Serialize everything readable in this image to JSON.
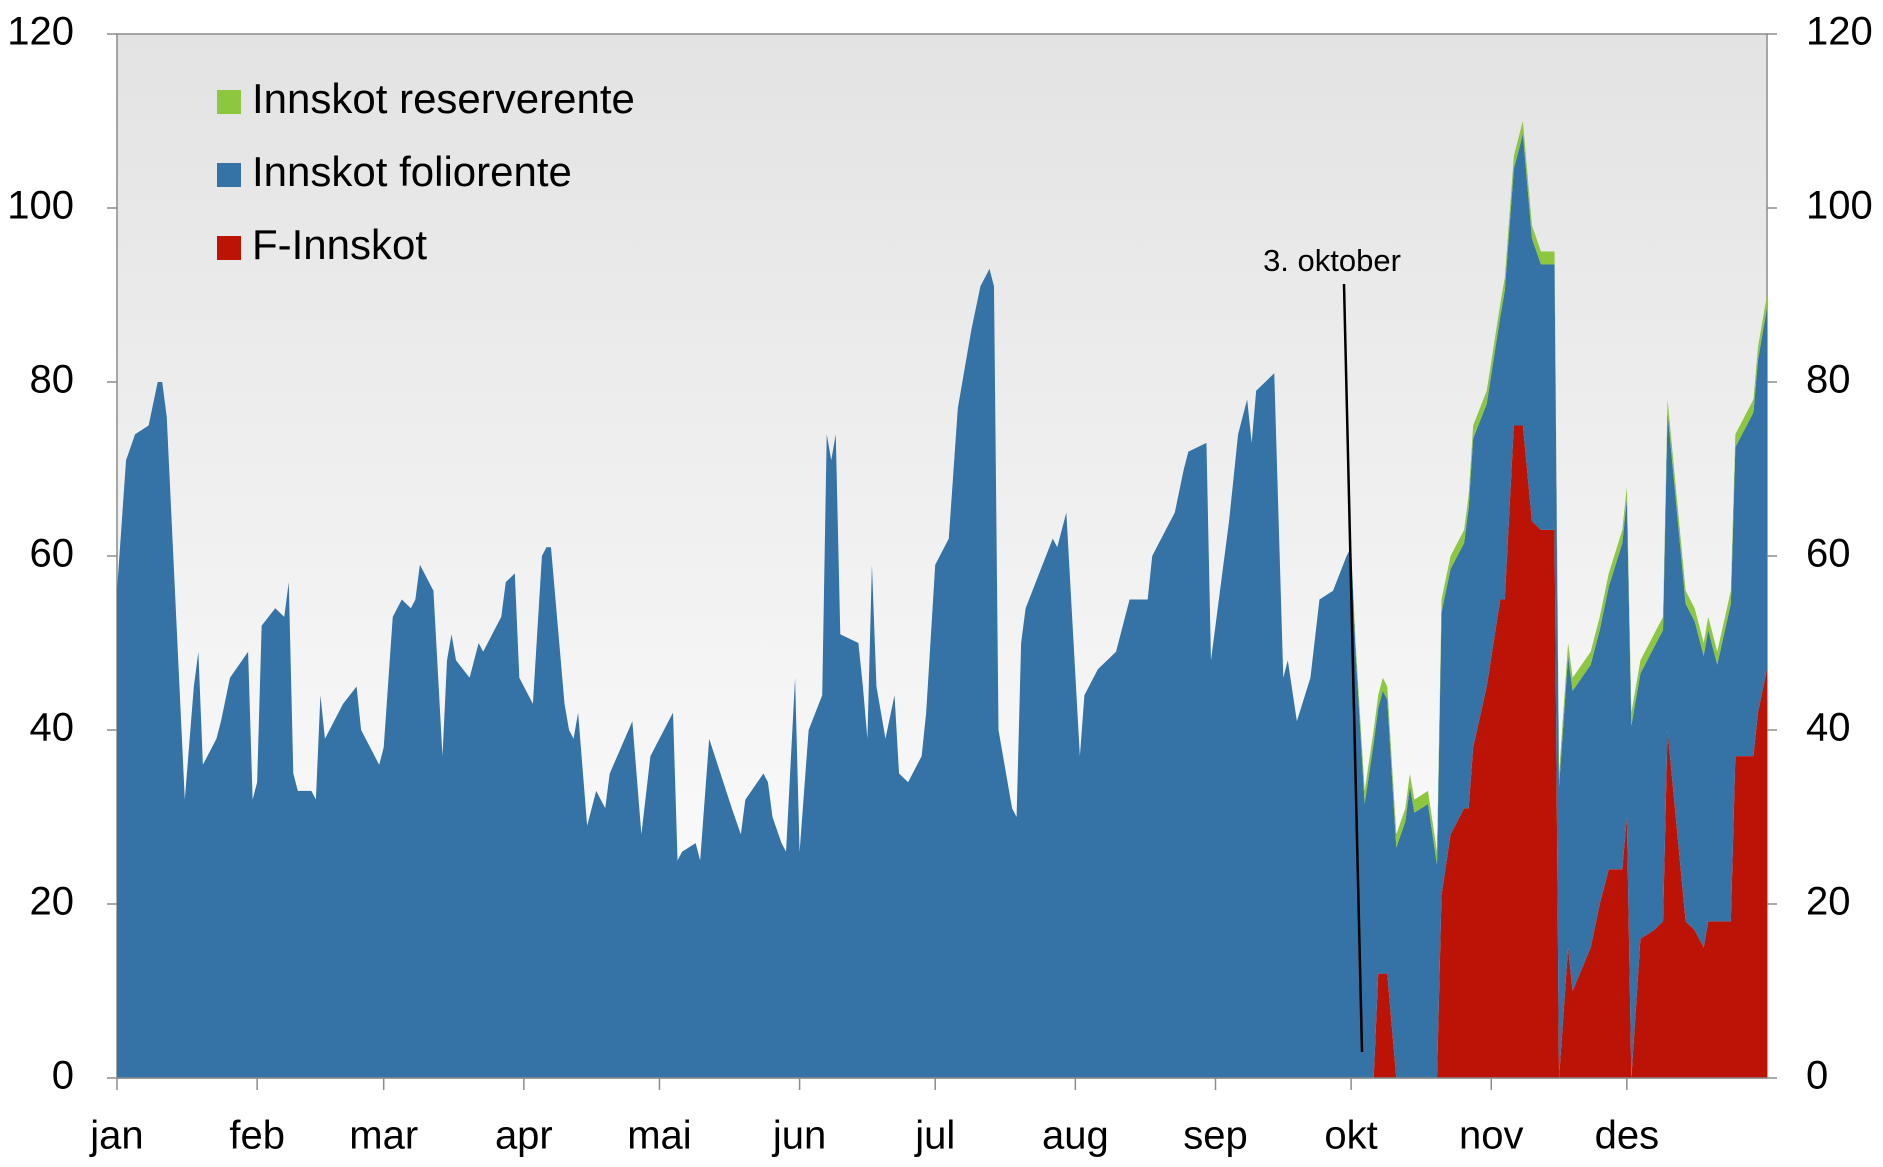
{
  "chart_data": {
    "type": "stacked_area",
    "x": [
      0,
      2,
      4,
      7,
      9,
      10,
      11,
      15,
      17,
      18,
      19,
      22,
      23,
      25,
      29,
      30,
      31,
      32,
      35,
      37,
      38,
      39,
      40,
      43,
      44,
      45,
      46,
      50,
      53,
      54,
      57,
      58,
      59,
      61,
      63,
      65,
      66,
      67,
      68,
      70,
      72,
      73,
      74,
      75,
      78,
      80,
      81,
      83,
      85,
      86,
      88,
      89,
      92,
      94,
      95,
      96,
      99,
      100,
      101,
      102,
      104,
      106,
      108,
      109,
      114,
      116,
      118,
      122,
      123,
      124,
      125,
      128,
      129,
      131,
      136,
      138,
      139,
      143,
      144,
      145,
      147,
      148,
      150,
      151,
      153,
      156,
      157,
      158,
      159,
      160,
      164,
      165,
      166,
      167,
      168,
      170,
      172,
      173,
      175,
      178,
      179,
      181,
      184,
      186,
      187,
      189,
      191,
      193,
      194,
      195,
      198,
      199,
      200,
      201,
      204,
      207,
      208,
      210,
      213,
      214,
      216,
      217,
      221,
      224,
      228,
      229,
      230,
      234,
      236,
      237,
      241,
      242,
      244,
      246,
      248,
      250,
      251,
      252,
      256,
      258,
      259,
      261,
      264,
      266,
      269,
      272,
      273,
      274,
      276,
      278,
      279,
      280,
      281,
      283,
      285,
      286,
      287,
      290,
      292,
      293,
      295,
      298,
      299,
      300,
      303,
      306,
      307,
      309,
      311,
      313,
      315,
      318,
      319,
      321,
      322,
      326,
      328,
      330,
      333,
      334,
      335,
      337,
      340,
      342,
      343,
      347,
      349,
      351,
      352,
      354,
      357,
      358,
      362,
      363,
      365
    ],
    "series": [
      {
        "name": "Innskot reserverente",
        "color": "#8dc63f",
        "values": [
          0,
          0,
          0,
          0,
          0,
          0,
          0,
          0,
          0,
          0,
          0,
          0,
          0,
          0,
          0,
          0,
          0,
          0,
          0,
          0,
          0,
          0,
          0,
          0,
          0,
          0,
          0,
          0,
          0,
          0,
          0,
          0,
          0,
          0,
          0,
          0,
          0,
          0,
          0,
          0,
          0,
          0,
          0,
          0,
          0,
          0,
          0,
          0,
          0,
          0,
          0,
          0,
          0,
          0,
          0,
          0,
          0,
          0,
          0,
          0,
          0,
          0,
          0,
          0,
          0,
          0,
          0,
          0,
          0,
          0,
          0,
          0,
          0,
          0,
          0,
          0,
          0,
          0,
          0,
          0,
          0,
          0,
          0,
          0,
          0,
          0,
          0,
          0,
          0,
          0,
          0,
          0,
          0,
          0,
          0,
          0,
          0,
          0,
          0,
          0,
          0,
          0,
          0,
          0,
          0,
          0,
          0,
          0,
          0,
          0,
          0,
          0,
          0,
          0,
          0,
          0,
          0,
          0,
          0,
          0,
          0,
          0,
          0,
          0,
          0,
          0,
          0,
          0,
          0,
          0,
          0,
          0,
          0,
          0,
          0,
          0,
          0,
          0,
          0,
          0,
          0,
          0,
          0,
          0,
          0,
          0,
          0,
          1,
          1.5,
          1.5,
          1.5,
          1.5,
          1.5,
          1.5,
          1.5,
          1.5,
          1.5,
          1.5,
          1.5,
          1.5,
          1.5,
          1.5,
          1.5,
          1.5,
          1.5,
          1.5,
          1.5,
          1.5,
          1.5,
          1.5,
          1.5,
          1.5,
          1.5,
          1.5,
          1.5,
          1.5,
          1.5,
          1.5,
          1.5,
          1.5,
          1.5,
          1.5,
          1.5,
          1.5,
          1.5,
          1.5,
          1.5,
          1.5,
          1.5,
          1.5,
          1.5,
          1.5,
          1.5,
          1.5,
          1.5
        ]
      },
      {
        "name": "Innskot foliorente",
        "color": "#3572a6",
        "values": [
          56,
          71,
          74,
          75,
          80,
          80,
          76,
          32,
          45,
          49,
          36,
          39,
          41,
          46,
          49,
          32,
          34,
          52,
          54,
          53,
          57,
          35,
          33,
          33,
          32,
          44,
          39,
          43,
          45,
          40,
          37,
          36,
          38,
          53,
          55,
          54,
          55,
          59,
          58,
          56,
          37,
          48,
          51,
          48,
          46,
          50,
          49,
          51,
          53,
          57,
          58,
          46,
          43,
          60,
          61,
          61,
          43,
          40,
          39,
          42,
          29,
          33,
          31,
          35,
          41,
          28,
          37,
          41,
          42,
          25,
          26,
          27,
          25,
          39,
          31,
          28,
          32,
          35,
          34,
          30,
          27,
          26,
          46,
          26,
          40,
          44,
          74,
          71,
          74,
          51,
          50,
          45,
          39,
          59,
          45,
          39,
          44,
          35,
          34,
          37,
          42,
          59,
          62,
          77,
          80,
          86,
          91,
          93,
          91,
          40,
          31,
          30,
          50,
          54,
          58,
          62,
          61,
          65,
          37,
          44,
          46,
          47,
          49,
          55,
          55,
          60,
          61,
          65,
          70,
          72,
          73,
          48,
          56,
          64,
          74,
          78,
          73,
          79,
          81,
          46,
          48,
          41,
          46,
          55,
          56,
          60,
          61,
          49,
          31.5,
          38.5,
          30.5,
          32.5,
          31.5,
          26.5,
          29.5,
          33.5,
          30.5,
          31.5,
          24.5,
          32.5,
          30.5,
          30.5,
          34.5,
          35.5,
          32.5,
          32.5,
          35.5,
          29.5,
          33.5,
          32.5,
          30.5,
          30.5,
          33.5,
          33.5,
          34.5,
          32.5,
          31.5,
          32.5,
          37.5,
          36.5,
          40.5,
          30.5,
          32.5,
          33.5,
          36.5,
          36.5,
          35.5,
          33.5,
          33.5,
          29.5,
          36.5,
          35.5,
          39.5,
          40.5,
          41.5
        ]
      },
      {
        "name": "F-Innskot",
        "color": "#bb1406",
        "values": [
          0,
          0,
          0,
          0,
          0,
          0,
          0,
          0,
          0,
          0,
          0,
          0,
          0,
          0,
          0,
          0,
          0,
          0,
          0,
          0,
          0,
          0,
          0,
          0,
          0,
          0,
          0,
          0,
          0,
          0,
          0,
          0,
          0,
          0,
          0,
          0,
          0,
          0,
          0,
          0,
          0,
          0,
          0,
          0,
          0,
          0,
          0,
          0,
          0,
          0,
          0,
          0,
          0,
          0,
          0,
          0,
          0,
          0,
          0,
          0,
          0,
          0,
          0,
          0,
          0,
          0,
          0,
          0,
          0,
          0,
          0,
          0,
          0,
          0,
          0,
          0,
          0,
          0,
          0,
          0,
          0,
          0,
          0,
          0,
          0,
          0,
          0,
          0,
          0,
          0,
          0,
          0,
          0,
          0,
          0,
          0,
          0,
          0,
          0,
          0,
          0,
          0,
          0,
          0,
          0,
          0,
          0,
          0,
          0,
          0,
          0,
          0,
          0,
          0,
          0,
          0,
          0,
          0,
          0,
          0,
          0,
          0,
          0,
          0,
          0,
          0,
          0,
          0,
          0,
          0,
          0,
          0,
          0,
          0,
          0,
          0,
          0,
          0,
          0,
          0,
          0,
          0,
          0,
          0,
          0,
          0,
          0,
          0,
          0,
          0,
          12,
          12,
          12,
          0,
          0,
          0,
          0,
          0,
          0,
          21,
          28,
          31,
          31,
          38,
          45,
          55,
          55,
          75,
          75,
          64,
          63,
          63,
          0,
          15,
          10,
          15,
          20,
          24,
          24,
          30,
          0,
          16,
          17,
          18,
          40,
          18,
          17,
          15,
          18,
          18,
          18,
          37,
          37,
          42,
          47
        ]
      }
    ],
    "xlim": [
      0,
      365
    ],
    "xticks": [
      {
        "value": 0,
        "label": "jan"
      },
      {
        "value": 31,
        "label": "feb"
      },
      {
        "value": 59,
        "label": "mar"
      },
      {
        "value": 90,
        "label": "apr"
      },
      {
        "value": 120,
        "label": "mai"
      },
      {
        "value": 151,
        "label": "jun"
      },
      {
        "value": 181,
        "label": "jul"
      },
      {
        "value": 212,
        "label": "aug"
      },
      {
        "value": 243,
        "label": "sep"
      },
      {
        "value": 273,
        "label": "okt"
      },
      {
        "value": 304,
        "label": "nov"
      },
      {
        "value": 334,
        "label": "des"
      }
    ],
    "ylim": [
      0,
      120
    ],
    "yticks": [
      0,
      20,
      40,
      60,
      80,
      100,
      120
    ],
    "annotations": [
      "3. oktober"
    ],
    "legend": "top-left"
  }
}
